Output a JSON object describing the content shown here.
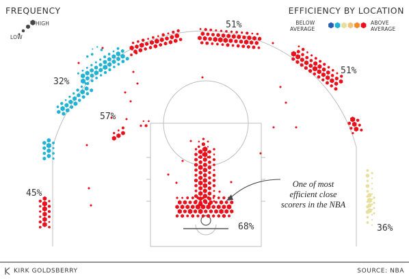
{
  "legend": {
    "frequency_title": "FREQUENCY",
    "frequency_low": "LOW",
    "frequency_high": "HIGH",
    "efficiency_title": "EFFICIENCY BY LOCATION",
    "below_average": [
      "BELOW",
      "AVERAGE"
    ],
    "above_average": [
      "ABOVE",
      "AVERAGE"
    ],
    "efficiency_colors": [
      "#2a5db0",
      "#1fb2d3",
      "#e8df9f",
      "#f0c27a",
      "#f28a2a",
      "#e8101a"
    ]
  },
  "annotation": {
    "lines": [
      "One of most",
      "efficient close",
      "scorers in the NBA"
    ]
  },
  "footer": {
    "author": "KIRK GOLDSBERRY",
    "source": "SOURCE: NBA"
  },
  "chart_data": {
    "type": "hexbin_shot_chart",
    "zones": [
      {
        "zone": "left corner three",
        "fg_pct": "45%",
        "efficiency": "above average"
      },
      {
        "zone": "left wing three",
        "fg_pct": "32%",
        "efficiency": "below average"
      },
      {
        "zone": "left mid-range",
        "fg_pct": "57%",
        "efficiency": "above average"
      },
      {
        "zone": "top of key three",
        "fg_pct": "51%",
        "efficiency": "above average"
      },
      {
        "zone": "right wing three",
        "fg_pct": "51%",
        "efficiency": "above average"
      },
      {
        "zone": "restricted area",
        "fg_pct": "68%",
        "efficiency": "above average"
      },
      {
        "zone": "right corner three",
        "fg_pct": "36%",
        "efficiency": "below average"
      }
    ]
  }
}
